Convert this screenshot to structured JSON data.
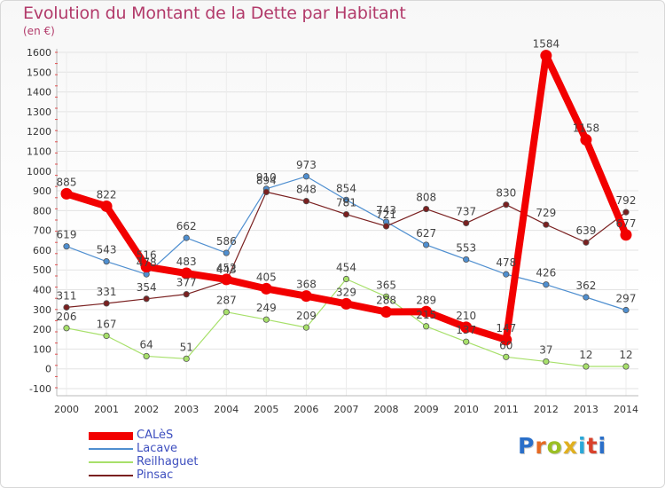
{
  "title": "Evolution du Montant de la Dette par Habitant",
  "subtitle": "(en €)",
  "logo": {
    "text": "Proxiti",
    "colors": [
      "#2a6fc9",
      "#e56a22",
      "#9bbf24",
      "#e0b020",
      "#2aa8d8",
      "#d9412b",
      "#2a6fc9"
    ]
  },
  "chart_data": {
    "type": "line",
    "x": [
      2000,
      2001,
      2002,
      2003,
      2004,
      2005,
      2006,
      2007,
      2008,
      2009,
      2010,
      2011,
      2012,
      2013,
      2014
    ],
    "ylim": [
      -100,
      1600
    ],
    "yticks": [
      -100,
      0,
      100,
      200,
      300,
      400,
      500,
      600,
      700,
      800,
      900,
      1000,
      1100,
      1200,
      1300,
      1400,
      1500,
      1600
    ],
    "grid": true,
    "legend_position": "bottom-left",
    "series": [
      {
        "name": "CALèS",
        "color": "#f20000",
        "emphasis": true,
        "values": [
          885,
          822,
          516,
          483,
          452,
          405,
          368,
          329,
          288,
          289,
          210,
          147,
          1584,
          1158,
          677
        ]
      },
      {
        "name": "Lacave",
        "color": "#4f8fd0",
        "emphasis": false,
        "values": [
          619,
          543,
          478,
          662,
          586,
          910,
          973,
          854,
          743,
          627,
          553,
          478,
          426,
          362,
          297
        ]
      },
      {
        "name": "Reilhaguet",
        "color": "#a7e06a",
        "emphasis": false,
        "values": [
          206,
          167,
          64,
          51,
          287,
          249,
          209,
          454,
          365,
          215,
          137,
          60,
          37,
          12,
          12
        ]
      },
      {
        "name": "Pinsac",
        "color": "#7a2020",
        "emphasis": false,
        "values": [
          311,
          331,
          354,
          377,
          443,
          894,
          848,
          781,
          721,
          808,
          737,
          830,
          729,
          639,
          792
        ]
      }
    ]
  }
}
